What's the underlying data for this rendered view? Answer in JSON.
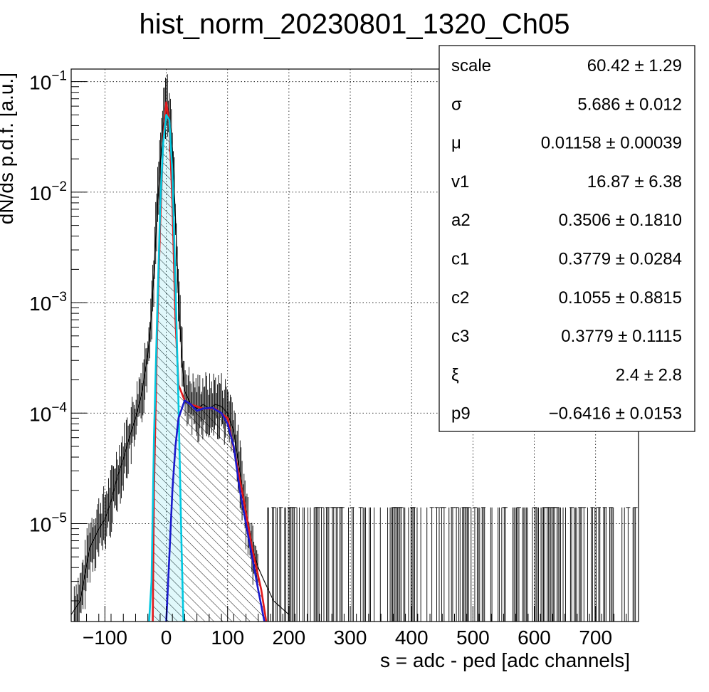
{
  "chart_data": {
    "type": "histogram",
    "title": "hist_norm_20230801_1320_Ch05",
    "xlabel": "s = adc - ped [adc channels]",
    "ylabel": "dN/ds p.d.f. [a.u.]",
    "xlim": [
      -155,
      770
    ],
    "ylim": [
      1.3e-06,
      0.13
    ],
    "yscale": "log",
    "grid": true,
    "x_ticks": [
      {
        "value": -100,
        "label": "−100"
      },
      {
        "value": 0,
        "label": "0"
      },
      {
        "value": 100,
        "label": "100"
      },
      {
        "value": 200,
        "label": "200"
      },
      {
        "value": 300,
        "label": "300"
      },
      {
        "value": 400,
        "label": "400"
      },
      {
        "value": 500,
        "label": "500"
      },
      {
        "value": 600,
        "label": "600"
      },
      {
        "value": 700,
        "label": "700"
      }
    ],
    "y_ticks": [
      {
        "value": 0.1,
        "base": "10",
        "exp": "−1"
      },
      {
        "value": 0.01,
        "base": "10",
        "exp": "−2"
      },
      {
        "value": 0.001,
        "base": "10",
        "exp": "−3"
      },
      {
        "value": 0.0001,
        "base": "10",
        "exp": "−4"
      },
      {
        "value": 1e-05,
        "base": "10",
        "exp": "−5"
      }
    ],
    "histogram": {
      "color": "#000000",
      "points": [
        [
          -155,
          1.5e-06
        ],
        [
          -140,
          2e-06
        ],
        [
          -125,
          6e-06
        ],
        [
          -110,
          9e-06
        ],
        [
          -100,
          1.1e-05
        ],
        [
          -90,
          1.6e-05
        ],
        [
          -80,
          2.6e-05
        ],
        [
          -70,
          3.8e-05
        ],
        [
          -60,
          6e-05
        ],
        [
          -50,
          9e-05
        ],
        [
          -40,
          0.00015
        ],
        [
          -35,
          0.00023
        ],
        [
          -30,
          0.00035
        ],
        [
          -25,
          0.0007
        ],
        [
          -20,
          0.002
        ],
        [
          -15,
          0.007
        ],
        [
          -10,
          0.018
        ],
        [
          -5,
          0.04
        ],
        [
          0,
          0.065
        ],
        [
          5,
          0.05
        ],
        [
          10,
          0.025
        ],
        [
          15,
          0.006
        ],
        [
          20,
          0.0012
        ],
        [
          25,
          0.00035
        ],
        [
          30,
          0.00016
        ],
        [
          40,
          0.00012
        ],
        [
          50,
          0.00011
        ],
        [
          60,
          0.00012
        ],
        [
          70,
          0.00011
        ],
        [
          80,
          0.00012
        ],
        [
          90,
          0.000115
        ],
        [
          100,
          0.0001
        ],
        [
          110,
          7e-05
        ],
        [
          120,
          3e-05
        ],
        [
          130,
          1.2e-05
        ],
        [
          140,
          6e-06
        ],
        [
          150,
          4e-06
        ],
        [
          160,
          3e-06
        ],
        [
          175,
          2e-06
        ],
        [
          200,
          1.5e-06
        ]
      ],
      "flat_level": 1.4e-05,
      "flat_range": [
        165,
        765
      ]
    },
    "series": [
      {
        "name": "",
        "color": "#e31a1c",
        "points": [
          [
            -22,
            1.3e-06
          ],
          [
            -20,
            2e-05
          ],
          [
            -15,
            0.0005
          ],
          [
            -10,
            0.005
          ],
          [
            -5,
            0.03
          ],
          [
            0,
            0.065
          ],
          [
            5,
            0.042
          ],
          [
            10,
            0.008
          ],
          [
            15,
            0.0007
          ],
          [
            20,
            0.00018
          ],
          [
            30,
            0.00013
          ],
          [
            40,
            0.00012
          ],
          [
            60,
            0.00011
          ],
          [
            80,
            0.00011
          ],
          [
            100,
            9e-05
          ],
          [
            115,
            3.5e-05
          ],
          [
            125,
            1.8e-05
          ],
          [
            140,
            6e-06
          ],
          [
            155,
            2.5e-06
          ],
          [
            163,
            1.3e-06
          ]
        ]
      },
      {
        "name": "",
        "color": "#00c8e0",
        "points": [
          [
            -28,
            1.3e-06
          ],
          [
            -24,
            3e-06
          ],
          [
            -20,
            6e-05
          ],
          [
            -15,
            0.0007
          ],
          [
            -10,
            0.007
          ],
          [
            -5,
            0.028
          ],
          [
            0,
            0.05
          ],
          [
            5,
            0.045
          ],
          [
            10,
            0.015
          ],
          [
            15,
            0.0015
          ],
          [
            20,
            0.00012
          ],
          [
            25,
            6e-06
          ],
          [
            28,
            1.3e-06
          ]
        ]
      },
      {
        "name": "",
        "color": "#1a1acc",
        "points": [
          [
            0,
            1.3e-06
          ],
          [
            5,
            5e-06
          ],
          [
            10,
            2e-05
          ],
          [
            15,
            5e-05
          ],
          [
            20,
            9e-05
          ],
          [
            30,
            0.00013
          ],
          [
            40,
            0.00012
          ],
          [
            50,
            0.000105
          ],
          [
            60,
            0.00011
          ],
          [
            75,
            0.000112
          ],
          [
            90,
            0.0001
          ],
          [
            100,
            8e-05
          ],
          [
            110,
            5e-05
          ],
          [
            120,
            2e-05
          ],
          [
            130,
            1e-05
          ],
          [
            140,
            5e-06
          ],
          [
            150,
            2.5e-06
          ],
          [
            160,
            1.3e-06
          ]
        ]
      }
    ]
  },
  "stats": [
    {
      "name": "scale",
      "value": "60.42 ± 1.29"
    },
    {
      "name": "σ",
      "value": "5.686 ± 0.012"
    },
    {
      "name": "μ",
      "value": "0.01158 ± 0.00039"
    },
    {
      "name": "v1",
      "value": "16.87 ± 6.38"
    },
    {
      "name": "a2",
      "value": "0.3506 ± 0.1810"
    },
    {
      "name": "c1",
      "value": "0.3779 ± 0.0284"
    },
    {
      "name": "c2",
      "value": "0.1055 ± 0.8815"
    },
    {
      "name": "c3",
      "value": "0.3779 ± 0.1115"
    },
    {
      "name": "ξ",
      "value": "2.4 ± 2.8"
    },
    {
      "name": "p9",
      "value": "−0.6416 ± 0.0153"
    }
  ]
}
